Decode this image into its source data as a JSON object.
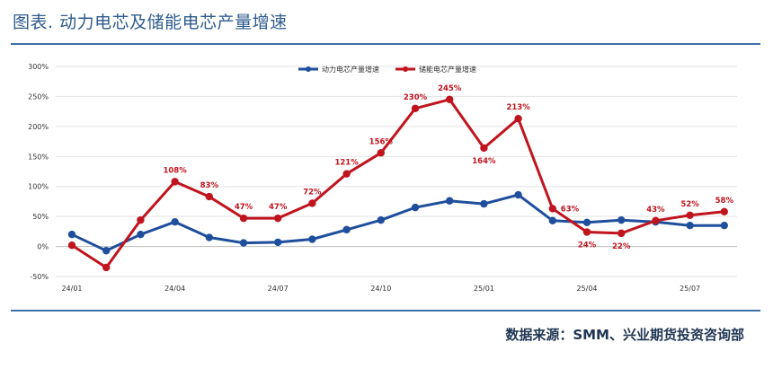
{
  "header": {
    "title": "图表. 动力电芯及储能电芯产量增速"
  },
  "footer": {
    "source": "数据来源：SMM、兴业期货投资咨询部"
  },
  "chart_data": {
    "type": "line",
    "title": "图表. 动力电芯及储能电芯产量增速",
    "x": [
      "24/01",
      "24/02",
      "24/03",
      "24/04",
      "24/05",
      "24/06",
      "24/07",
      "24/08",
      "24/09",
      "24/10",
      "24/11",
      "24/12",
      "25/01",
      "25/02",
      "25/03",
      "25/04",
      "25/05",
      "25/06",
      "25/07",
      "25/08"
    ],
    "x_tick_labels": [
      "24/01",
      "24/04",
      "24/07",
      "24/10",
      "25/01",
      "25/04",
      "25/07"
    ],
    "ylim": [
      -50,
      300
    ],
    "y_ticks": [
      -50,
      0,
      50,
      100,
      150,
      200,
      250,
      300
    ],
    "y_tick_labels": [
      "-50%",
      "0%",
      "50%",
      "100%",
      "150%",
      "200%",
      "250%",
      "300%"
    ],
    "legend_position": "top-center",
    "grid": "horizontal",
    "series": [
      {
        "name": "动力电芯产量增速",
        "color": "#1f4e9c",
        "values": [
          20,
          -7,
          20,
          41,
          15,
          6,
          7,
          12,
          28,
          44,
          65,
          76,
          71,
          86,
          43,
          40,
          44,
          41,
          35,
          35
        ]
      },
      {
        "name": "储能电芯产量增速",
        "color": "#c0141e",
        "values": [
          2,
          -35,
          44,
          108,
          83,
          47,
          47,
          72,
          121,
          156,
          230,
          245,
          164,
          213,
          63,
          24,
          22,
          43,
          52,
          58
        ],
        "data_labels": [
          {
            "index": 3,
            "text": "108%",
            "pos": "above"
          },
          {
            "index": 4,
            "text": "83%",
            "pos": "above"
          },
          {
            "index": 5,
            "text": "47%",
            "pos": "above"
          },
          {
            "index": 6,
            "text": "47%",
            "pos": "above"
          },
          {
            "index": 7,
            "text": "72%",
            "pos": "above"
          },
          {
            "index": 8,
            "text": "121%",
            "pos": "above"
          },
          {
            "index": 9,
            "text": "156%",
            "pos": "above"
          },
          {
            "index": 10,
            "text": "230%",
            "pos": "above"
          },
          {
            "index": 11,
            "text": "245%",
            "pos": "above"
          },
          {
            "index": 12,
            "text": "164%",
            "pos": "below"
          },
          {
            "index": 13,
            "text": "213%",
            "pos": "above"
          },
          {
            "index": 14,
            "text": "63%",
            "pos": "right"
          },
          {
            "index": 15,
            "text": "24%",
            "pos": "below"
          },
          {
            "index": 16,
            "text": "22%",
            "pos": "below"
          },
          {
            "index": 17,
            "text": "43%",
            "pos": "above"
          },
          {
            "index": 18,
            "text": "52%",
            "pos": "above"
          },
          {
            "index": 19,
            "text": "58%",
            "pos": "above"
          }
        ]
      }
    ]
  }
}
